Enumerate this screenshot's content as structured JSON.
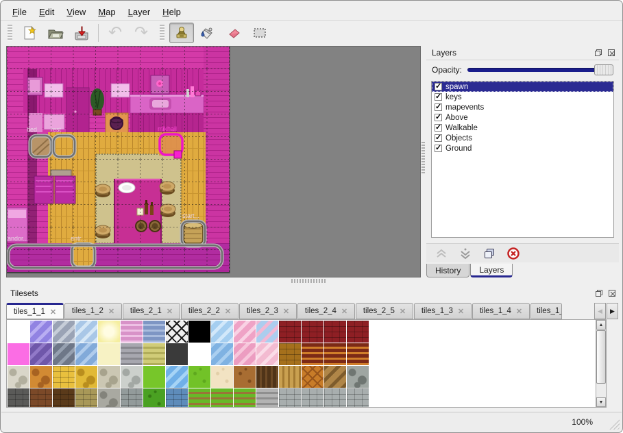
{
  "menu": {
    "items": [
      {
        "label": "File"
      },
      {
        "label": "Edit"
      },
      {
        "label": "View"
      },
      {
        "label": "Map"
      },
      {
        "label": "Layer"
      },
      {
        "label": "Help"
      }
    ]
  },
  "toolbar": {
    "icons": [
      "new-map-icon",
      "open-icon",
      "save-icon",
      "undo-icon",
      "redo-icon",
      "stamp-brush-icon",
      "bucket-fill-icon",
      "eraser-icon",
      "rect-select-icon"
    ],
    "active_tool": "stamp-brush"
  },
  "map_view": {
    "objects": {
      "bed": "bed",
      "rest": "rest",
      "mikhail": "mikhail",
      "start": "start...",
      "andor": "andor...",
      "entr": "entr..."
    },
    "selected_object": "mikhail"
  },
  "layers_panel": {
    "title": "Layers",
    "opacity_label": "Opacity:",
    "opacity_value": "100%",
    "layers": [
      {
        "name": "spawn",
        "checked": true,
        "selected": true
      },
      {
        "name": "keys",
        "checked": true
      },
      {
        "name": "mapevents",
        "checked": true
      },
      {
        "name": "Above",
        "checked": true
      },
      {
        "name": "Walkable",
        "checked": true
      },
      {
        "name": "Objects",
        "checked": true
      },
      {
        "name": "Ground",
        "checked": true
      }
    ],
    "tabs": [
      {
        "label": "History",
        "active": false
      },
      {
        "label": "Layers",
        "active": true
      }
    ]
  },
  "tilesets_panel": {
    "title": "Tilesets",
    "tabs": [
      "tiles_1_1",
      "tiles_1_2",
      "tiles_2_1",
      "tiles_2_2",
      "tiles_2_3",
      "tiles_2_4",
      "tiles_2_5",
      "tiles_1_3",
      "tiles_1_4",
      "tiles_1_"
    ],
    "active_tab": "tiles_1_1",
    "tiles": [
      [
        [
          "#ffffff",
          "#ffffff",
          "flat"
        ],
        [
          "#9183e2",
          "#b9aef2",
          "diag"
        ],
        [
          "#9aa3b5",
          "#c6cdd8",
          "diag"
        ],
        [
          "#a9c7e7",
          "#d6e7f6",
          "diag"
        ],
        [
          "#f5eea0",
          "#fffce2",
          "glow"
        ],
        [
          "#d892c8",
          "#eec0e4",
          "h"
        ],
        [
          "#7e96c4",
          "#a9bcdd",
          "h"
        ],
        [
          "#efefef",
          "#1c1c1c",
          "x"
        ],
        [
          "#000000",
          "#000000",
          "flat"
        ],
        [
          "#a5cef0",
          "#d2e8fa",
          "diag"
        ],
        [
          "#efa3c6",
          "#f9d2e4",
          "diag"
        ],
        [
          "#accdee",
          "#f2b8d4",
          "diag"
        ],
        [
          "#8e1f24",
          "#58100f",
          "brick"
        ],
        [
          "#8e1f24",
          "#58100f",
          "brick"
        ],
        [
          "#8e1f24",
          "#58100f",
          "brick"
        ],
        [
          "#8e1f24",
          "#58100f",
          "brick"
        ]
      ],
      [
        [
          "#fb6de4",
          "#fb6de4",
          "flat"
        ],
        [
          "#6f57aa",
          "#9179c8",
          "diag"
        ],
        [
          "#6e7788",
          "#96a0b0",
          "diag"
        ],
        [
          "#82aad9",
          "#b0ccec",
          "diag"
        ],
        [
          "#f7f2c4",
          "#fdfae2",
          "flat"
        ],
        [
          "#a7a7af",
          "#88888f",
          "h"
        ],
        [
          "#d0cc78",
          "#b1ad59",
          "h"
        ],
        [
          "#3a3a3a",
          "#2a2a2a",
          "flat"
        ],
        [
          "#ffffff",
          "#ffffff",
          "flat"
        ],
        [
          "#7fb2e2",
          "#aacff0",
          "diag"
        ],
        [
          "#ec9dc1",
          "#f7c6db",
          "diag"
        ],
        [
          "#f3bbd1",
          "#fadce8",
          "diag"
        ],
        [
          "#a5701c",
          "#714a0e",
          "brick"
        ],
        [
          "#7c2a16",
          "#d07e2a",
          "h"
        ],
        [
          "#7c2a16",
          "#d07e2a",
          "h"
        ],
        [
          "#7c2a16",
          "#d07e2a",
          "h"
        ]
      ],
      [
        [
          "#d9d6c9",
          "#b2af9e",
          "stone"
        ],
        [
          "#d28a33",
          "#a76221",
          "stone"
        ],
        [
          "#e9c03e",
          "#c1951f",
          "brick"
        ],
        [
          "#e1b937",
          "#b98e1e",
          "stone"
        ],
        [
          "#cbc7b3",
          "#a7a38d",
          "stone"
        ],
        [
          "#ccd0cc",
          "#a3a8a4",
          "stone"
        ],
        [
          "#77c62a",
          "#77c62a",
          "flat"
        ],
        [
          "#70b0e8",
          "#a6d4f6",
          "diag"
        ],
        [
          "#72c228",
          "#5ea81e",
          "dots"
        ],
        [
          "#f2e3c3",
          "#e2cfa8",
          "dots"
        ],
        [
          "#a86d32",
          "#7e4c1e",
          "dots"
        ],
        [
          "#503418",
          "#6d4a26",
          "v"
        ],
        [
          "#c9a050",
          "#a37a32",
          "v"
        ],
        [
          "#c87c28",
          "#97541a",
          "x"
        ],
        [
          "#b08648",
          "#7e5c2c",
          "diag"
        ],
        [
          "#9fa6a2",
          "#6f7672",
          "stone"
        ]
      ],
      [
        [
          "#5a5a58",
          "#3c3c3a",
          "brick"
        ],
        [
          "#7b4928",
          "#55301a",
          "brick"
        ],
        [
          "#5a3a1a",
          "#3c2610",
          "brick"
        ],
        [
          "#a89858",
          "#7e7038",
          "brick"
        ],
        [
          "#a9a9a1",
          "#83837b",
          "stone"
        ],
        [
          "#939b9b",
          "#6f7777",
          "brick"
        ],
        [
          "#4aa122",
          "#357a14",
          "dots"
        ],
        [
          "#5e8cba",
          "#46719e",
          "brick"
        ],
        [
          "#68b828",
          "#9a7438",
          "h"
        ],
        [
          "#68b828",
          "#9a7438",
          "h"
        ],
        [
          "#68b828",
          "#9a7438",
          "h"
        ],
        [
          "#b3b3b3",
          "#8f8f8f",
          "h"
        ],
        [
          "#a8aeae",
          "#848a8a",
          "brick"
        ],
        [
          "#a8aeae",
          "#848a8a",
          "brick"
        ],
        [
          "#a8aeae",
          "#848a8a",
          "brick"
        ],
        [
          "#a8aeae",
          "#848a8a",
          "brick"
        ]
      ]
    ]
  },
  "status_bar": {
    "zoom_level": "100%"
  },
  "colors": {
    "accent_navy": "#26268f",
    "selection_navy": "#2b2b92",
    "map_magenta": "#d43aa8",
    "floor_gold": "#e0ab3f",
    "carpet_khaki": "#cfc28d",
    "object_outline": "#757575",
    "selected_object_outline": "#ee14c8",
    "canvas_gray": "#828282"
  }
}
